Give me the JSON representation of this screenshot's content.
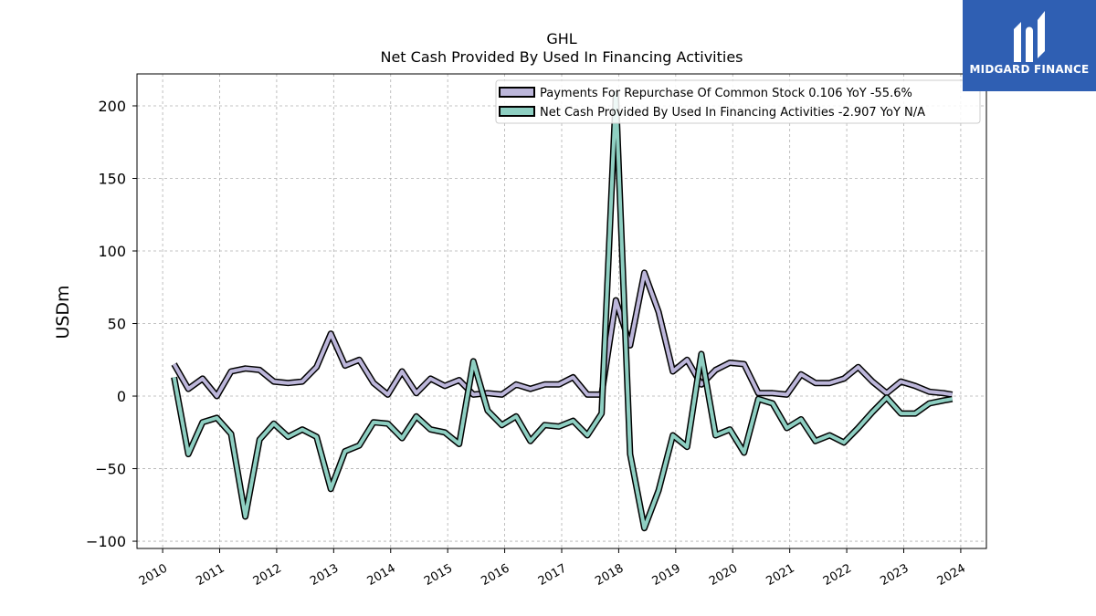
{
  "brand": {
    "name": "MIDGARD FINANCE",
    "bg": "#2f5fb3"
  },
  "chart_data": {
    "type": "line",
    "title": "GHL",
    "subtitle": "Net Cash Provided By Used In Financing Activities",
    "ylabel": "USDm",
    "xlabel": "",
    "xlim": [
      2009.55,
      2024.45
    ],
    "ylim": [
      -105,
      222
    ],
    "yticks": [
      -100,
      -50,
      0,
      50,
      100,
      150,
      200
    ],
    "ytick_labels": [
      "−100",
      "−50",
      "0",
      "50",
      "100",
      "150",
      "200"
    ],
    "xticks": [
      2010,
      2011,
      2012,
      2013,
      2014,
      2015,
      2016,
      2017,
      2018,
      2019,
      2020,
      2021,
      2022,
      2023,
      2024
    ],
    "xtick_labels": [
      "2010",
      "2011",
      "2012",
      "2013",
      "2014",
      "2015",
      "2016",
      "2017",
      "2018",
      "2019",
      "2020",
      "2021",
      "2022",
      "2023",
      "2024"
    ],
    "grid": true,
    "legend_position": "top-right",
    "series": [
      {
        "name": "Payments For Repurchase Of Common Stock  0.106 YoY -55.6%",
        "color": "#bcb6da",
        "x": [
          2010.2,
          2010.45,
          2010.7,
          2010.95,
          2011.2,
          2011.45,
          2011.7,
          2011.95,
          2012.2,
          2012.45,
          2012.7,
          2012.95,
          2013.2,
          2013.45,
          2013.7,
          2013.95,
          2014.2,
          2014.45,
          2014.7,
          2014.95,
          2015.2,
          2015.45,
          2015.7,
          2015.95,
          2016.2,
          2016.45,
          2016.7,
          2016.95,
          2017.2,
          2017.45,
          2017.7,
          2017.95,
          2018.2,
          2018.45,
          2018.7,
          2018.95,
          2019.2,
          2019.45,
          2019.7,
          2019.95,
          2020.2,
          2020.45,
          2020.7,
          2020.95,
          2021.2,
          2021.45,
          2021.7,
          2021.95,
          2022.2,
          2022.45,
          2022.7,
          2022.95,
          2023.2,
          2023.45,
          2023.7,
          2023.85
        ],
        "values": [
          22,
          5,
          12,
          0,
          17,
          19,
          18,
          10,
          9,
          10,
          20,
          43,
          21,
          25,
          9,
          1,
          17,
          2,
          12,
          7,
          11,
          1,
          2,
          1,
          8,
          5,
          8,
          8,
          13,
          1,
          1,
          66,
          35,
          85,
          58,
          17,
          25,
          8,
          18,
          23,
          22,
          2,
          2,
          1,
          15,
          9,
          9,
          12,
          20,
          10,
          2,
          10,
          7,
          3,
          2,
          1
        ]
      },
      {
        "name": "Net Cash Provided By Used In Financing Activities  -2.907 YoY N/A",
        "color": "#8ecfc2",
        "x": [
          2010.2,
          2010.45,
          2010.7,
          2010.95,
          2011.2,
          2011.45,
          2011.7,
          2011.95,
          2012.2,
          2012.45,
          2012.7,
          2012.95,
          2013.2,
          2013.45,
          2013.7,
          2013.95,
          2014.2,
          2014.45,
          2014.7,
          2014.95,
          2015.2,
          2015.45,
          2015.7,
          2015.95,
          2016.2,
          2016.45,
          2016.7,
          2016.95,
          2017.2,
          2017.45,
          2017.7,
          2017.95,
          2018.2,
          2018.45,
          2018.7,
          2018.95,
          2019.2,
          2019.45,
          2019.7,
          2019.95,
          2020.2,
          2020.45,
          2020.7,
          2020.95,
          2021.2,
          2021.45,
          2021.7,
          2021.95,
          2022.2,
          2022.45,
          2022.7,
          2022.95,
          2023.2,
          2023.45,
          2023.7,
          2023.85
        ],
        "values": [
          13,
          -40,
          -18,
          -15,
          -26,
          -83,
          -30,
          -19,
          -28,
          -23,
          -28,
          -64,
          -38,
          -34,
          -18,
          -19,
          -29,
          -14,
          -23,
          -25,
          -33,
          24,
          -10,
          -20,
          -14,
          -31,
          -20,
          -21,
          -17,
          -27,
          -12,
          208,
          -40,
          -91,
          -65,
          -27,
          -35,
          29,
          -27,
          -23,
          -39,
          -2,
          -5,
          -22,
          -16,
          -31,
          -27,
          -32,
          -22,
          -11,
          -1,
          -12,
          -12,
          -5,
          -3,
          -2
        ]
      }
    ]
  }
}
